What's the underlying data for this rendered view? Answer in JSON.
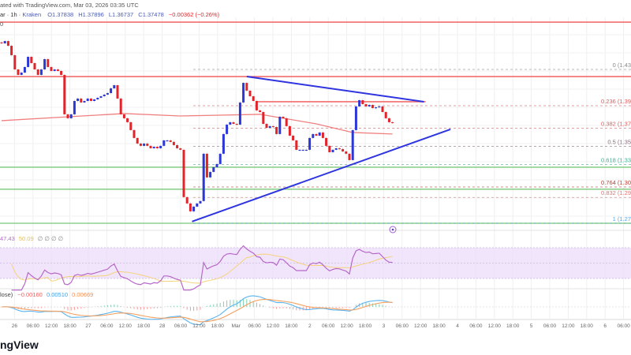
{
  "header": {
    "attribution": "ated with TradingView.com, Mar 03, 2026 03:35 UTC",
    "symbol": "ar",
    "interval": "1h",
    "exchange": "Kraken",
    "open": "O1.37838",
    "high": "H1.37896",
    "low": "L1.36737",
    "close": "C1.37478",
    "change": "−0.00362 (−0.26%)",
    "top_left_tick": "0"
  },
  "colors": {
    "up_candle": "#2b37d6",
    "down_candle": "#e0242a",
    "resistance": "#f26d6d",
    "support": "#8fd08f",
    "trendline": "#2d34e0",
    "ma": "#f08080",
    "rsi": "#b768c8",
    "rsi_signal": "#f5d27a",
    "rsi_band": "#ecdcfb",
    "macd": "#5ab4f0",
    "macd_signal": "#f5a060"
  },
  "chart_data": {
    "type": "candlestick",
    "timeframe": "1h",
    "closes": [
      1.4571,
      1.4595,
      1.4546,
      1.4448,
      1.43,
      1.4243,
      1.4267,
      1.4325,
      1.4431,
      1.4366,
      1.43,
      1.4243,
      1.43,
      1.4407,
      1.4325,
      1.4284,
      1.43,
      1.4284,
      1.4243,
      1.3833,
      1.3792,
      1.3833,
      1.3972,
      1.3997,
      1.3956,
      1.3972,
      1.3997,
      1.3972,
      1.3988,
      1.4005,
      1.4021,
      1.4038,
      1.4054,
      1.4103,
      1.4136,
      1.3997,
      1.3833,
      1.3792,
      1.3751,
      1.3669,
      1.3587,
      1.3529,
      1.3505,
      1.3529,
      1.3505,
      1.348,
      1.3496,
      1.348,
      1.3505,
      1.3562,
      1.3562,
      1.3546,
      1.3513,
      1.348,
      1.3464,
      1.2972,
      1.2906,
      1.2824,
      1.2873,
      1.2906,
      1.2931,
      1.3423,
      1.3177,
      1.3234,
      1.3283,
      1.3316,
      1.3423,
      1.3628,
      1.3726,
      1.3751,
      1.3734,
      1.3726,
      1.3956,
      1.416,
      1.4079,
      1.4021,
      1.3972,
      1.3874,
      1.3857,
      1.3734,
      1.3693,
      1.371,
      1.3701,
      1.3628,
      1.3808,
      1.3792,
      1.371,
      1.3611,
      1.3562,
      1.3464,
      1.3464,
      1.3464,
      1.3464,
      1.3587,
      1.3628,
      1.3611,
      1.3644,
      1.3587,
      1.3505,
      1.3439,
      1.3464,
      1.348,
      1.3472,
      1.3447,
      1.3423,
      1.3357,
      1.3669,
      1.3915,
      1.398,
      1.3939,
      1.3915,
      1.3931,
      1.3898,
      1.3906,
      1.3915,
      1.3857,
      1.3792,
      1.3751,
      1.3748
    ],
    "moving_average": [
      [
        0,
        1.3767
      ],
      [
        37,
        1.3841
      ],
      [
        54,
        1.3816
      ],
      [
        78,
        1.3833
      ],
      [
        95,
        1.3734
      ],
      [
        106,
        1.3644
      ],
      [
        118,
        1.3628
      ]
    ],
    "horizontal_lines": [
      {
        "kind": "resistance",
        "price": 1.4792
      },
      {
        "kind": "resistance",
        "price": 1.4226
      },
      {
        "kind": "support",
        "price": 1.3283
      },
      {
        "kind": "support",
        "price": 1.3054
      },
      {
        "kind": "support",
        "price": 1.27
      }
    ],
    "segment_lines": [
      {
        "kind": "resistance",
        "price": 1.3964,
        "from_bar": 77,
        "to_bar": 128
      }
    ],
    "trend_lines": [
      {
        "from": {
          "bar": 74,
          "price": 1.4226
        },
        "to": {
          "bar": 127.5,
          "price": 1.3964
        }
      },
      {
        "from": {
          "bar": 57.5,
          "price": 1.2718
        },
        "to": {
          "bar": 135.5,
          "price": 1.3677
        }
      }
    ],
    "fibonacci": {
      "high": 1.43,
      "low": 1.27,
      "levels": [
        {
          "level": 0,
          "label": "0 (1.43",
          "color": "#8a8a8a"
        },
        {
          "level": 0.236,
          "label": "0.236 (1.39",
          "color": "#e05a5a"
        },
        {
          "level": 0.382,
          "label": "0.382 (1.37",
          "color": "#e05a5a"
        },
        {
          "level": 0.5,
          "label": "0.5 (1.35",
          "color": "#8a6c7c"
        },
        {
          "level": 0.618,
          "label": "0.618 (1.33",
          "color": "#3cb28f"
        },
        {
          "level": 0.764,
          "label": "0.764 (1.30",
          "color": "#c0392b"
        },
        {
          "level": 0.832,
          "label": "0.832 (1.29",
          "color": "#e57373"
        },
        {
          "level": 1,
          "label": "1 (1.27",
          "color": "#5aa6e8"
        }
      ]
    },
    "x_ticks": [
      "00",
      "26",
      "06:00",
      "12:00",
      "18:00",
      "27",
      "06:00",
      "12:00",
      "18:00",
      "28",
      "06:00",
      "12:00",
      "18:00",
      "Mar",
      "06:00",
      "12:00",
      "18:00",
      "2",
      "06:00",
      "12:00",
      "18:00",
      "3",
      "06:00",
      "12:00",
      "18:00",
      "4",
      "06:00",
      "12:00",
      "18:00",
      "5",
      "06:00",
      "12:00",
      "18:00",
      "6",
      "06:00"
    ],
    "rsi": {
      "band": [
        30,
        70
      ],
      "value_label": "47.43",
      "signal_label": "50.09",
      "extra": "∅ ∅ ∅ ∅"
    },
    "macd": {
      "name_fragment": "lose)",
      "histogram": "−0.00160",
      "macd": "0.00510",
      "signal": "0.00669"
    }
  },
  "footer": {
    "logo_text": "ngView"
  }
}
